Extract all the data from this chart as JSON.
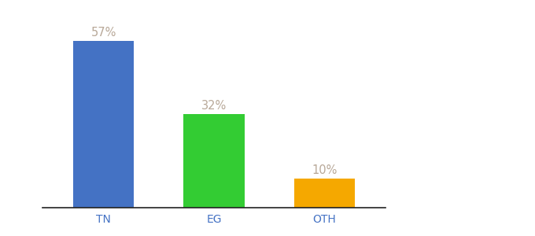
{
  "categories": [
    "TN",
    "EG",
    "OTH"
  ],
  "values": [
    57,
    32,
    10
  ],
  "labels": [
    "57%",
    "32%",
    "10%"
  ],
  "bar_colors": [
    "#4472c4",
    "#33cc33",
    "#f5a800"
  ],
  "background_color": "#ffffff",
  "ylim": [
    0,
    63
  ],
  "label_color": "#b8a898",
  "label_fontsize": 10.5,
  "tick_fontsize": 10,
  "tick_color": "#4472c4",
  "bar_width": 0.55,
  "x_positions": [
    0,
    1,
    2
  ],
  "xlim": [
    -0.5,
    3.5
  ]
}
